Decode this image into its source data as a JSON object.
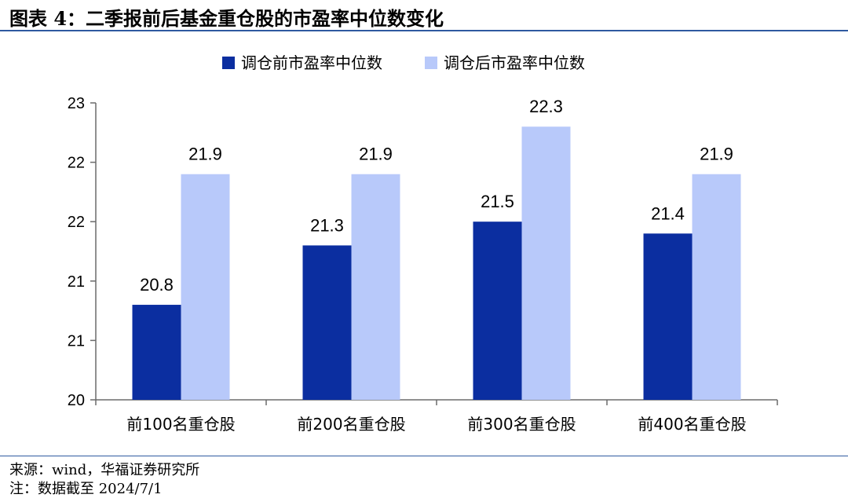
{
  "header": {
    "title": "图表 4：二季报前后基金重仓股的市盈率中位数变化"
  },
  "footer": {
    "source": "来源：wind，华福证券研究所",
    "note": "注：数据截至 2024/7/1"
  },
  "chart_data": {
    "type": "bar",
    "title": "",
    "xlabel": "",
    "ylabel": "",
    "categories": [
      "前100名重仓股",
      "前200名重仓股",
      "前300名重仓股",
      "前400名重仓股"
    ],
    "series": [
      {
        "name": "调仓前市盈率中位数",
        "color": "#0b2ea0",
        "values": [
          20.8,
          21.3,
          21.5,
          21.4
        ],
        "labels": [
          "20.8",
          "21.3",
          "21.5",
          "21.4"
        ]
      },
      {
        "name": "调仓后市盈率中位数",
        "color": "#b8c9fa",
        "values": [
          21.9,
          21.9,
          22.3,
          21.9
        ],
        "labels": [
          "21.9",
          "21.9",
          "22.3",
          "21.9"
        ]
      }
    ],
    "ylim": [
      20,
      22.5
    ],
    "yticks": [
      20,
      20.5,
      21,
      21.5,
      22,
      22.5
    ],
    "ytick_labels": [
      "20",
      "21",
      "21",
      "22",
      "22",
      "23"
    ],
    "legend_position": "top-center",
    "grid": false
  }
}
